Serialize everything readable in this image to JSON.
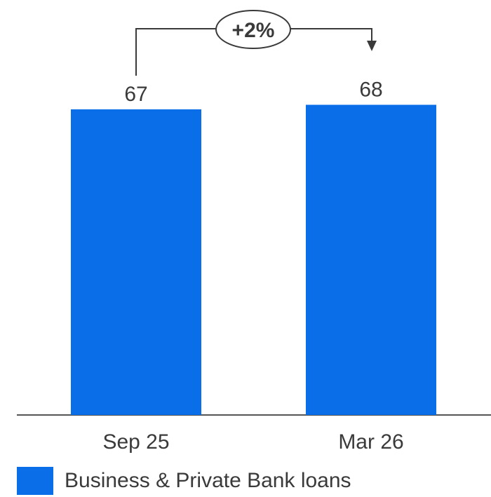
{
  "chart_data": {
    "type": "bar",
    "categories": [
      "Sep 25",
      "Mar 26"
    ],
    "series": [
      {
        "name": "Business & Private Bank loans",
        "values": [
          67,
          68
        ],
        "color": "#0A6EE8"
      }
    ],
    "data_labels": [
      "67",
      "68"
    ],
    "annotation": {
      "text": "+2%",
      "from": "Sep 25",
      "to": "Mar 26"
    },
    "legend_position": "bottom-left",
    "grid": false
  }
}
